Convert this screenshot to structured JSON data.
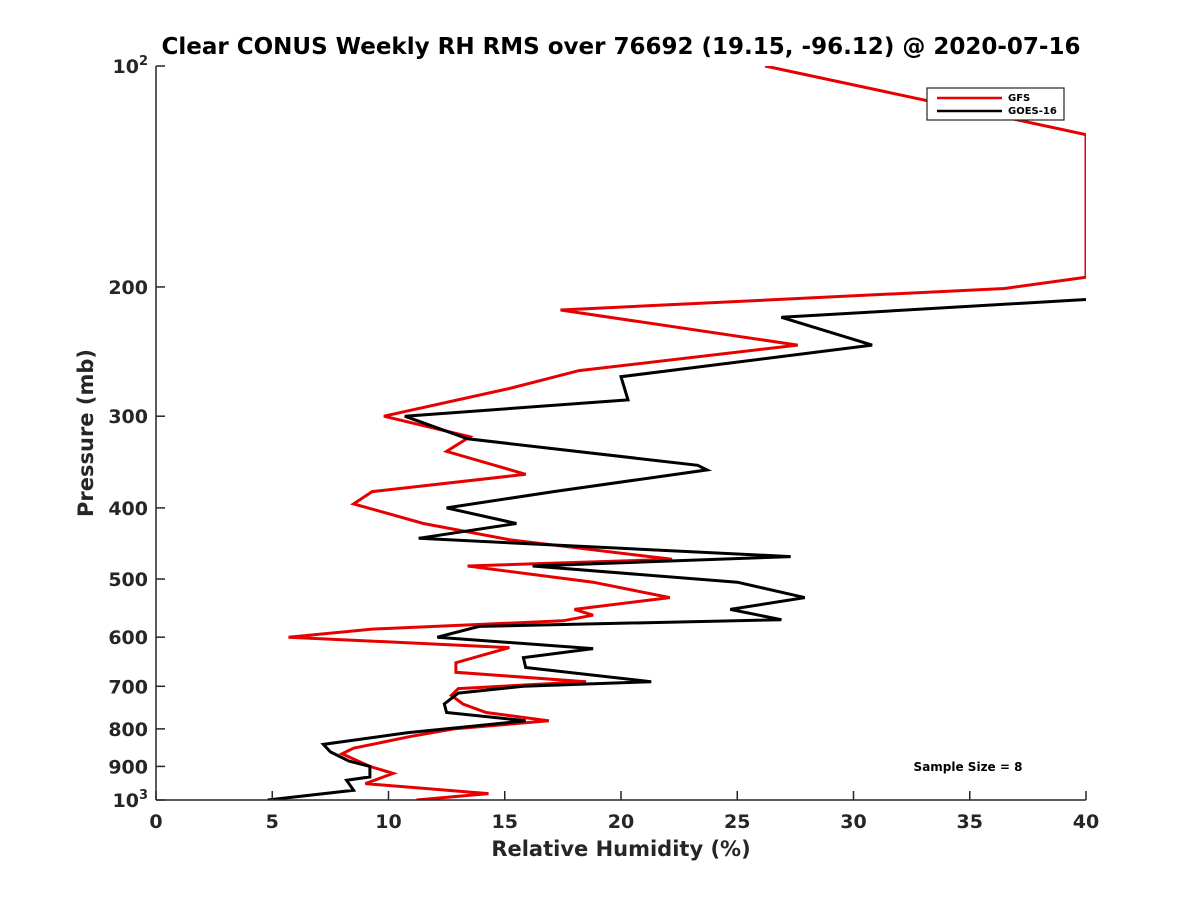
{
  "chart_data": {
    "type": "line",
    "title": "Clear CONUS Weekly RH RMS over 76692 (19.15, -96.12) @ 2020-07-16",
    "xlabel": "Relative Humidity (%)",
    "ylabel": "Pressure (mb)",
    "xlim": [
      0,
      40
    ],
    "ylim": [
      100,
      1000
    ],
    "yscale": "log",
    "y_reversed": true,
    "grid": false,
    "legend_position": "top-right",
    "xticks": [
      0,
      5,
      10,
      15,
      20,
      25,
      30,
      35,
      40
    ],
    "yticks": [
      {
        "value": 100,
        "base": "10",
        "exp": "2"
      },
      {
        "value": 200,
        "label": "200"
      },
      {
        "value": 300,
        "label": "300"
      },
      {
        "value": 400,
        "label": "400"
      },
      {
        "value": 500,
        "label": "500"
      },
      {
        "value": 600,
        "label": "600"
      },
      {
        "value": 700,
        "label": "700"
      },
      {
        "value": 800,
        "label": "800"
      },
      {
        "value": 900,
        "label": "900"
      },
      {
        "value": 1000,
        "base": "10",
        "exp": "3"
      }
    ],
    "series": [
      {
        "name": "GFS",
        "color": "#e60000",
        "points": [
          [
            26.2,
            100
          ],
          [
            40.0,
            124
          ],
          [
            40.0,
            194
          ],
          [
            36.5,
            201
          ],
          [
            17.4,
            215
          ],
          [
            27.6,
            240
          ],
          [
            18.2,
            260
          ],
          [
            15.2,
            275
          ],
          [
            9.8,
            300
          ],
          [
            13.5,
            320
          ],
          [
            12.5,
            335
          ],
          [
            15.9,
            360
          ],
          [
            9.3,
            380
          ],
          [
            8.5,
            395
          ],
          [
            11.5,
            420
          ],
          [
            15.2,
            442
          ],
          [
            22.2,
            470
          ],
          [
            13.4,
            480
          ],
          [
            18.8,
            505
          ],
          [
            22.1,
            530
          ],
          [
            18.0,
            550
          ],
          [
            18.8,
            560
          ],
          [
            17.5,
            570
          ],
          [
            9.3,
            585
          ],
          [
            5.7,
            600
          ],
          [
            15.2,
            620
          ],
          [
            12.9,
            650
          ],
          [
            12.9,
            670
          ],
          [
            18.5,
            690
          ],
          [
            13.0,
            705
          ],
          [
            12.7,
            720
          ],
          [
            13.2,
            740
          ],
          [
            14.2,
            760
          ],
          [
            16.9,
            780
          ],
          [
            12.8,
            800
          ],
          [
            10.9,
            820
          ],
          [
            8.5,
            850
          ],
          [
            8.0,
            865
          ],
          [
            9.2,
            900
          ],
          [
            10.2,
            920
          ],
          [
            9.0,
            950
          ],
          [
            14.3,
            980
          ],
          [
            11.2,
            1000
          ]
        ]
      },
      {
        "name": "GOES-16",
        "color": "#000000",
        "points": [
          [
            40.0,
            208
          ],
          [
            26.9,
            220
          ],
          [
            30.8,
            240
          ],
          [
            20.0,
            265
          ],
          [
            20.3,
            285
          ],
          [
            10.7,
            300
          ],
          [
            13.4,
            322
          ],
          [
            23.3,
            350
          ],
          [
            23.7,
            355
          ],
          [
            17.1,
            380
          ],
          [
            12.5,
            400
          ],
          [
            15.5,
            420
          ],
          [
            11.3,
            440
          ],
          [
            27.3,
            466
          ],
          [
            16.2,
            480
          ],
          [
            25.0,
            505
          ],
          [
            27.9,
            530
          ],
          [
            24.7,
            550
          ],
          [
            26.9,
            568
          ],
          [
            13.9,
            580
          ],
          [
            12.1,
            600
          ],
          [
            18.8,
            622
          ],
          [
            15.8,
            640
          ],
          [
            15.9,
            660
          ],
          [
            21.3,
            690
          ],
          [
            15.8,
            700
          ],
          [
            13.0,
            715
          ],
          [
            12.4,
            740
          ],
          [
            12.5,
            760
          ],
          [
            15.9,
            780
          ],
          [
            10.8,
            810
          ],
          [
            7.2,
            840
          ],
          [
            7.5,
            860
          ],
          [
            8.3,
            885
          ],
          [
            9.2,
            900
          ],
          [
            9.2,
            930
          ],
          [
            8.2,
            940
          ],
          [
            8.5,
            970
          ],
          [
            4.8,
            1000
          ]
        ]
      }
    ],
    "annotations": [
      "Sample Size = 8"
    ]
  }
}
